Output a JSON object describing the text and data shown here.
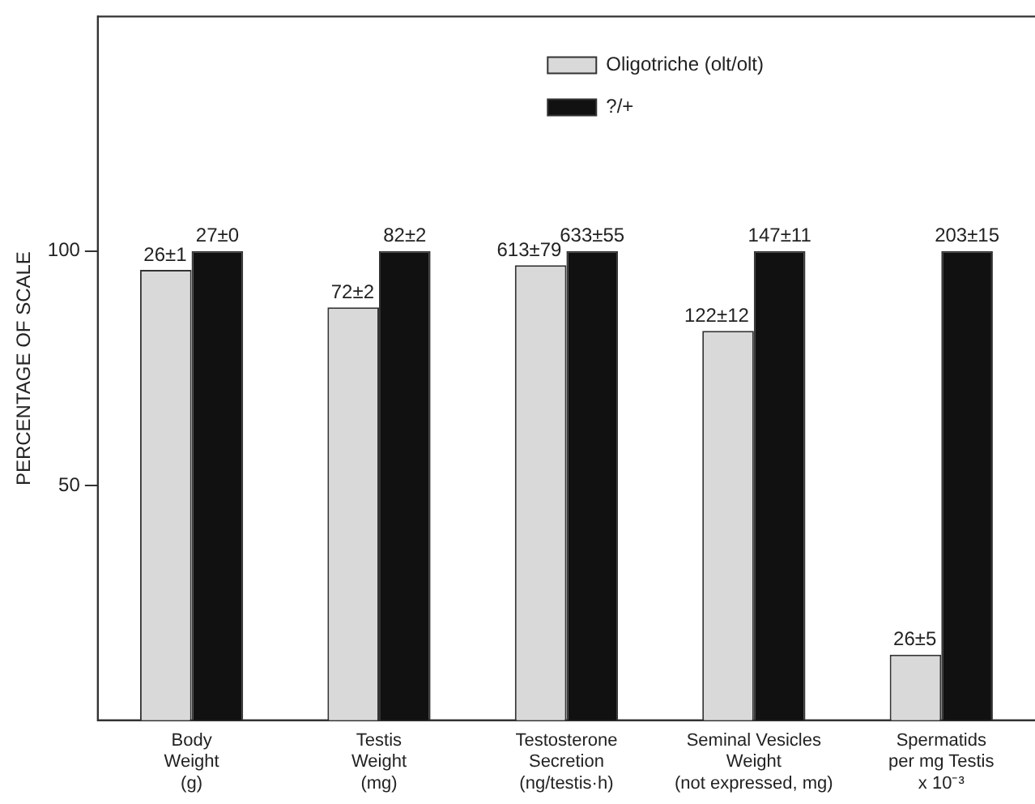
{
  "chart_data": {
    "type": "bar",
    "ylabel": "PERCENTAGE OF SCALE",
    "categories": [
      "Body\nWeight\n(g)",
      "Testis\nWeight\n(mg)",
      "Testosterone\nSecretion\n(ng/testis·h)",
      "Seminal Vesicles\nWeight\n(not expressed, mg)",
      "Spermatids\nper mg Testis\nx 10⁻³"
    ],
    "series": [
      {
        "name": "Oligotriche (olt/olt)",
        "color": "#d9d9d9",
        "values": [
          96,
          88,
          97,
          83,
          14
        ]
      },
      {
        "name": "?/+",
        "color": "#111111",
        "values": [
          100,
          100,
          100,
          100,
          100
        ]
      }
    ],
    "annotations": [
      {
        "text": "26±1",
        "x": "Body\nWeight\n(g)",
        "y": 96
      },
      {
        "text": "27±0",
        "x": "Body\nWeight\n(g)",
        "y": 100
      },
      {
        "text": "72±2",
        "x": "Testis\nWeight\n(mg)",
        "y": 88
      },
      {
        "text": "82±2",
        "x": "Testis\nWeight\n(mg)",
        "y": 100
      },
      {
        "text": "613±79",
        "x": "Testosterone\nSecretion\n(ng/testis·h)",
        "y": 97
      },
      {
        "text": "633±55",
        "x": "Testosterone\nSecretion\n(ng/testis·h)",
        "y": 100
      },
      {
        "text": "122±12",
        "x": "Seminal Vesicles\nWeight\n(not expressed, mg)",
        "y": 83
      },
      {
        "text": "147±11",
        "x": "Seminal Vesicles\nWeight\n(not expressed, mg)",
        "y": 100
      },
      {
        "text": "26±5",
        "x": "Spermatids\nper mg Testis\nx 10⁻³",
        "y": 14
      },
      {
        "text": "203±15",
        "x": "Spermatids\nper mg Testis\nx 10⁻³",
        "y": 100
      }
    ],
    "ylim": [
      0,
      150
    ],
    "yticks": [
      50,
      100
    ],
    "grid": false,
    "legend": "top right"
  }
}
